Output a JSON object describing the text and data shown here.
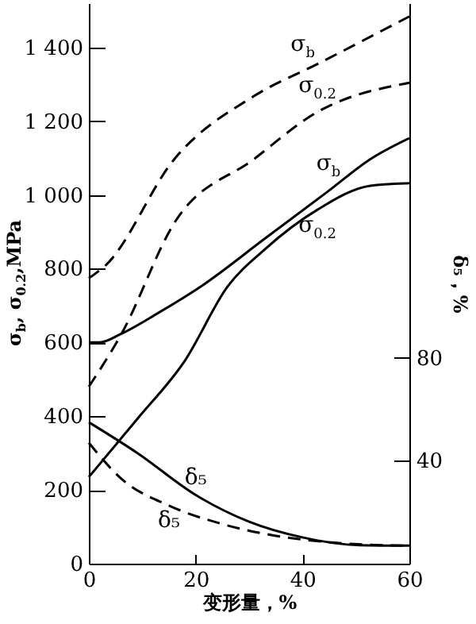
{
  "chart_data": {
    "type": "line",
    "xlabel": "变形量，%",
    "ylabel": "σ$_{b}$, σ$_{0.2}$,MPa",
    "y2label": "δ₅，%",
    "x": [
      0,
      3.2,
      16,
      30.9,
      42.8,
      60
    ],
    "xlim": [
      0,
      60
    ],
    "xticks": [
      0,
      20,
      40,
      60
    ],
    "ylim": [
      0,
      1520
    ],
    "yticks": [
      0,
      200,
      400,
      600,
      800,
      {
        "value": 1000,
        "label": "1 000"
      },
      {
        "value": 1200,
        "label": "1 200"
      },
      {
        "value": 1400,
        "label": "1 400"
      }
    ],
    "y2lim": [
      0,
      218
    ],
    "y2ticks": [
      40,
      80
    ],
    "grid": false,
    "marker": "none",
    "series": [
      {
        "color": "#000000",
        "line_style": "dashed",
        "values": [
          774,
          810,
          1097,
          1268,
          1355,
          1484
        ]
      },
      {
        "color": "#000000",
        "line_style": "dashed",
        "x": [
          0,
          6.1,
          16,
          30.9,
          42.8,
          60
        ],
        "values": [
          480,
          623,
          924,
          1097,
          1225,
          1304
        ]
      },
      {
        "color": "#000000",
        "line_style": "solid",
        "x": [
          0,
          2,
          6,
          13,
          21,
          32.9,
          44.8,
          52.7,
          60
        ],
        "values": [
          600,
          600,
          623,
          680,
          752,
          881,
          1010,
          1097,
          1154
        ]
      },
      {
        "color": "#000000",
        "line_style": "solid",
        "x": [
          0,
          9.1,
          18,
          26,
          32.9,
          42.8,
          52.7,
          60
        ],
        "values": [
          235,
          393,
          551,
          752,
          852,
          960,
          1025,
          1032
        ]
      },
      {
        "color": "#000000",
        "line_style": "solid",
        "axis": "y2",
        "x": [
          0,
          9.1,
          20,
          29.9,
          39.8,
          50.7,
          60
        ],
        "values": [
          55,
          43,
          26.7,
          16.4,
          10.3,
          7.2,
          7
        ]
      },
      {
        "color": "#000000",
        "line_style": "dashed",
        "axis": "y2",
        "x": [
          0,
          6.1,
          15,
          25,
          34.8,
          44.7,
          54.6,
          60
        ],
        "values": [
          47,
          33,
          22.6,
          15.4,
          10.9,
          8.4,
          7.2,
          7
        ]
      }
    ],
    "annotations": [
      {
        "text": "σ$_{b}$",
        "x": 40,
        "y": 1334
      },
      {
        "text": "σ$_{0.2}$",
        "x": 42.8,
        "y": 1225
      },
      {
        "text": "σ$_{b}$",
        "x": 44.8,
        "y": 1010
      },
      {
        "text": "σ$_{0.2}$",
        "x": 42.8,
        "y": 960
      },
      {
        "text": "δ₅",
        "x": 20,
        "y": 186
      },
      {
        "text": "δ₅",
        "x": 15,
        "y": 158
      }
    ]
  }
}
